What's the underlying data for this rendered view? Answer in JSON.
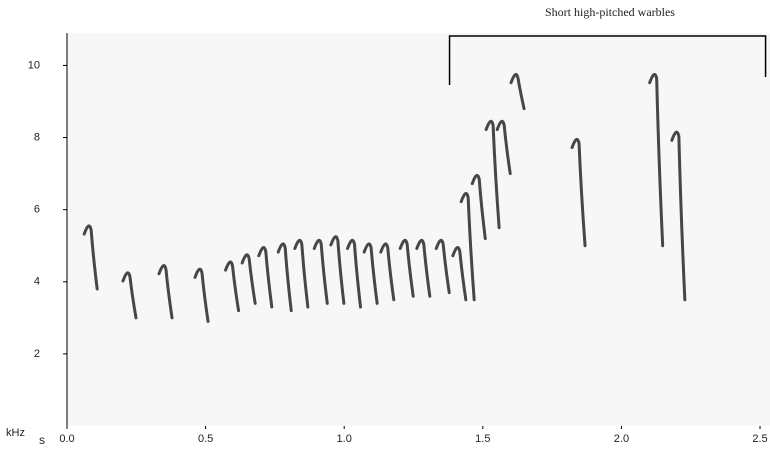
{
  "chart_data": {
    "type": "spectrogram",
    "annotation": {
      "text": "Short high-pitched warbles",
      "x": [
        1.38,
        2.52
      ]
    },
    "xlabel": "s",
    "ylabel": "kHz",
    "xlim": [
      0,
      2.536
    ],
    "ylim": [
      0,
      10.9
    ],
    "xticks": [
      {
        "value": 0,
        "label": "0.0"
      },
      {
        "value": 0.5,
        "label": "0.5"
      },
      {
        "value": 1,
        "label": "1.0"
      },
      {
        "value": 1.5,
        "label": "1.5"
      },
      {
        "value": 2,
        "label": "2.0"
      },
      {
        "value": 2.5,
        "label": "2.5"
      }
    ],
    "yticks": [
      2,
      4,
      6,
      8,
      10
    ],
    "color": "#1a1a1a",
    "notes": {
      "x": [
        0.08,
        0.22,
        0.35,
        0.48,
        0.59,
        0.65,
        0.71,
        0.78,
        0.84,
        0.91,
        0.97,
        1.03,
        1.09,
        1.15,
        1.22,
        1.28,
        1.35,
        1.41,
        1.44,
        1.48,
        1.53,
        1.57,
        1.62,
        1.84,
        2.12,
        2.2
      ],
      "high": [
        5.6,
        4.3,
        4.5,
        4.4,
        4.6,
        4.8,
        5.0,
        5.1,
        5.2,
        5.2,
        5.3,
        5.2,
        5.1,
        5.1,
        5.2,
        5.2,
        5.2,
        5.0,
        6.5,
        7.0,
        8.5,
        8.5,
        9.8,
        8.0,
        9.8,
        8.2
      ],
      "low": [
        3.8,
        3.0,
        3.0,
        2.9,
        3.2,
        3.4,
        3.3,
        3.2,
        3.3,
        3.4,
        3.4,
        3.3,
        3.4,
        3.5,
        3.6,
        3.6,
        3.7,
        3.5,
        3.5,
        5.2,
        5.5,
        7.0,
        8.8,
        5.0,
        5.0,
        3.5
      ]
    }
  }
}
